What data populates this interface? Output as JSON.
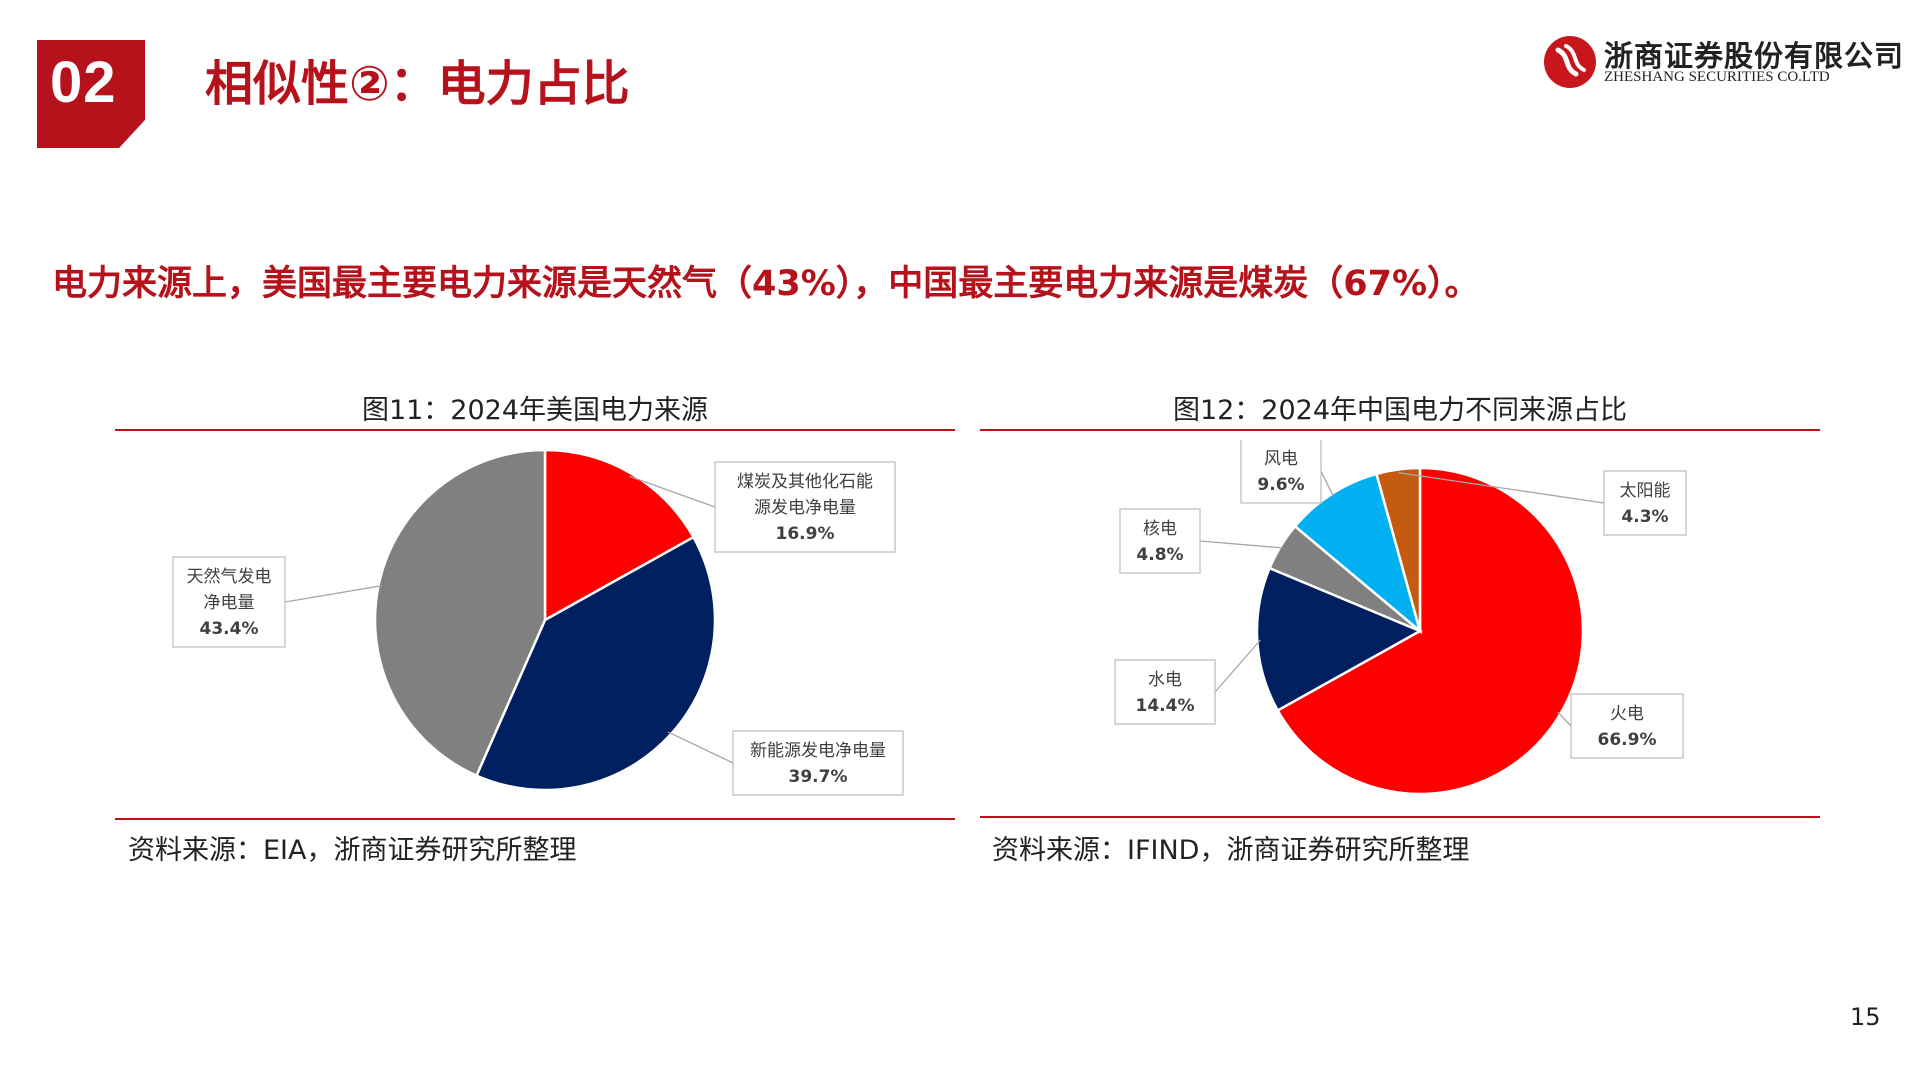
{
  "section": {
    "number": "02",
    "title": "相似性②：电力占比"
  },
  "logo": {
    "name_cn": "浙商证券股份有限公司",
    "name_en": "ZHESHANG SECURITIES CO.LTD"
  },
  "headline": "电力来源上，美国最主要电力来源是天然气（43%），中国最主要电力来源是煤炭（67%）。",
  "figures": [
    {
      "title": "图11：2024年美国电力来源",
      "source": "资料来源：EIA，浙商证券研究所整理"
    },
    {
      "title": "图12：2024年中国电力不同来源占比",
      "source": "资料来源：IFIND，浙商证券研究所整理"
    }
  ],
  "page_number": "15",
  "chart_data": [
    {
      "type": "pie",
      "title": "图11：2024年美国电力来源",
      "unit": "%",
      "slices": [
        {
          "label_lines": [
            "煤炭及其他化石能",
            "源发电净电量"
          ],
          "value": 16.9,
          "display": "16.9%",
          "color": "#ff0000"
        },
        {
          "label_lines": [
            "新能源发电净电量"
          ],
          "value": 39.7,
          "display": "39.7%",
          "color": "#002060"
        },
        {
          "label_lines": [
            "天然气发电",
            "净电量"
          ],
          "value": 43.4,
          "display": "43.4%",
          "color": "#808080"
        }
      ]
    },
    {
      "type": "pie",
      "title": "图12：2024年中国电力不同来源占比",
      "unit": "%",
      "slices": [
        {
          "label_lines": [
            "火电"
          ],
          "value": 66.9,
          "display": "66.9%",
          "color": "#ff0000"
        },
        {
          "label_lines": [
            "水电"
          ],
          "value": 14.4,
          "display": "14.4%",
          "color": "#002060"
        },
        {
          "label_lines": [
            "核电"
          ],
          "value": 4.8,
          "display": "4.8%",
          "color": "#808080"
        },
        {
          "label_lines": [
            "风电"
          ],
          "value": 9.6,
          "display": "9.6%",
          "color": "#00b0f0"
        },
        {
          "label_lines": [
            "太阳能"
          ],
          "value": 4.3,
          "display": "4.3%",
          "color": "#c55a11"
        }
      ]
    }
  ]
}
